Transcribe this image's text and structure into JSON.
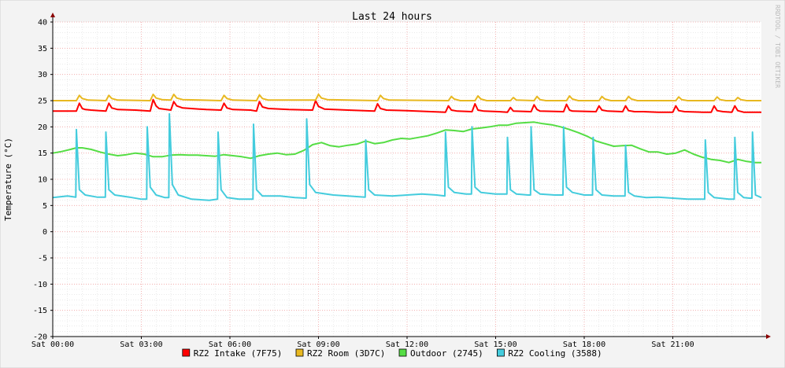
{
  "chart_data": {
    "type": "line",
    "title": "Last 24 hours",
    "ylabel": "Temperature (°C)",
    "xlabel": "",
    "watermark": "RRDTOOL / TOBI OETIKER",
    "ylim": [
      -20,
      40
    ],
    "yticks": [
      "40",
      "35",
      "30",
      "25",
      "20",
      "15",
      "10",
      "5",
      "0",
      "-5",
      "-10",
      "-15",
      "-20"
    ],
    "xlim": [
      0,
      24
    ],
    "xticks": [
      {
        "h": 0,
        "label": "Sat 00:00"
      },
      {
        "h": 3,
        "label": "Sat 03:00"
      },
      {
        "h": 6,
        "label": "Sat 06:00"
      },
      {
        "h": 9,
        "label": "Sat 09:00"
      },
      {
        "h": 12,
        "label": "Sat 12:00"
      },
      {
        "h": 15,
        "label": "Sat 15:00"
      },
      {
        "h": 18,
        "label": "Sat 18:00"
      },
      {
        "h": 21,
        "label": "Sat 21:00"
      }
    ],
    "grid": true,
    "legend_position": "bottom",
    "colors": {
      "background": "#f3f3f3",
      "canvas": "#ffffff",
      "major_grid": "#f0a0a0",
      "minor_grid": "#dddddd",
      "axis": "#000000",
      "arrow": "#8b0000"
    },
    "series": [
      {
        "name": "RZ2 Intake (7F75)",
        "color": "#ff0000",
        "x": [
          0,
          0.8,
          0.9,
          1.0,
          1.1,
          1.3,
          1.8,
          1.9,
          2.0,
          2.2,
          2.8,
          3.3,
          3.4,
          3.5,
          3.6,
          4.0,
          4.1,
          4.2,
          4.4,
          5.2,
          5.7,
          5.8,
          5.9,
          6.1,
          6.7,
          6.9,
          7.0,
          7.1,
          7.3,
          8.0,
          8.8,
          8.9,
          9.0,
          9.2,
          10.0,
          10.9,
          11.0,
          11.1,
          11.3,
          12.0,
          13.3,
          13.4,
          13.5,
          13.7,
          14.2,
          14.3,
          14.4,
          14.6,
          15.1,
          15.4,
          15.5,
          15.6,
          16.2,
          16.3,
          16.4,
          16.5,
          17.3,
          17.4,
          17.5,
          17.6,
          18.4,
          18.5,
          18.6,
          18.8,
          19.3,
          19.4,
          19.5,
          19.7,
          20.0,
          20.5,
          21.0,
          21.1,
          21.2,
          21.4,
          22.0,
          22.3,
          22.4,
          22.5,
          22.7,
          23.0,
          23.1,
          23.2,
          23.4,
          23.8,
          24.0
        ],
        "y": [
          23.0,
          23.0,
          24.5,
          23.5,
          23.3,
          23.2,
          23.0,
          24.5,
          23.6,
          23.3,
          23.2,
          23.0,
          25.2,
          24.0,
          23.5,
          23.2,
          24.8,
          24.0,
          23.6,
          23.3,
          23.2,
          24.5,
          23.6,
          23.3,
          23.2,
          23.0,
          24.8,
          23.8,
          23.5,
          23.3,
          23.2,
          25.0,
          23.9,
          23.4,
          23.2,
          23.0,
          24.4,
          23.5,
          23.2,
          23.1,
          22.8,
          24.0,
          23.2,
          23.0,
          22.9,
          24.4,
          23.2,
          23.0,
          22.9,
          22.8,
          23.7,
          23.0,
          22.9,
          24.2,
          23.3,
          23.0,
          22.9,
          24.3,
          23.2,
          23.0,
          22.9,
          24.0,
          23.2,
          23.0,
          22.9,
          24.0,
          23.1,
          22.9,
          22.9,
          22.8,
          22.8,
          24.0,
          23.1,
          22.9,
          22.8,
          22.8,
          24.0,
          23.1,
          22.9,
          22.8,
          24.0,
          23.1,
          22.8,
          22.8,
          22.8
        ]
      },
      {
        "name": "RZ2 Room (3D7C)",
        "color": "#e8b820",
        "x": [
          0,
          0.8,
          0.9,
          1.0,
          1.2,
          1.8,
          1.9,
          2.0,
          2.2,
          3.3,
          3.4,
          3.5,
          3.7,
          4.0,
          4.1,
          4.2,
          4.4,
          5.7,
          5.8,
          5.9,
          6.1,
          6.9,
          7.0,
          7.1,
          7.3,
          8.9,
          9.0,
          9.1,
          9.3,
          11.0,
          11.1,
          11.2,
          11.4,
          13.4,
          13.5,
          13.6,
          13.8,
          14.3,
          14.4,
          14.5,
          14.7,
          15.5,
          15.6,
          15.7,
          16.3,
          16.4,
          16.5,
          16.7,
          17.4,
          17.5,
          17.6,
          17.8,
          18.5,
          18.6,
          18.7,
          18.9,
          19.4,
          19.5,
          19.6,
          19.8,
          21.1,
          21.2,
          21.3,
          21.5,
          22.4,
          22.5,
          22.6,
          22.8,
          23.1,
          23.2,
          23.3,
          23.5,
          24.0
        ],
        "y": [
          25.0,
          25.0,
          26.0,
          25.4,
          25.1,
          25.0,
          26.0,
          25.4,
          25.1,
          25.0,
          26.2,
          25.5,
          25.2,
          25.1,
          26.2,
          25.5,
          25.2,
          25.0,
          26.0,
          25.4,
          25.1,
          25.0,
          26.1,
          25.4,
          25.1,
          25.1,
          26.2,
          25.5,
          25.2,
          25.0,
          26.0,
          25.4,
          25.1,
          25.0,
          25.8,
          25.3,
          25.0,
          25.0,
          25.9,
          25.3,
          25.0,
          25.0,
          25.6,
          25.1,
          25.0,
          25.8,
          25.2,
          25.0,
          25.0,
          25.9,
          25.3,
          25.0,
          25.0,
          25.8,
          25.3,
          25.0,
          25.0,
          25.8,
          25.3,
          25.0,
          25.0,
          25.7,
          25.2,
          25.0,
          25.0,
          25.7,
          25.2,
          25.0,
          25.0,
          25.6,
          25.2,
          25.0,
          25.0
        ]
      },
      {
        "name": "Outdoor (2745)",
        "color": "#55dd44",
        "x": [
          0,
          0.3,
          0.6,
          0.8,
          1.0,
          1.3,
          1.6,
          1.9,
          2.2,
          2.5,
          2.8,
          3.1,
          3.4,
          3.7,
          4.0,
          4.3,
          4.6,
          4.9,
          5.2,
          5.5,
          5.8,
          6.1,
          6.4,
          6.7,
          7.0,
          7.3,
          7.6,
          7.9,
          8.2,
          8.5,
          8.8,
          9.1,
          9.4,
          9.7,
          10.0,
          10.3,
          10.6,
          10.9,
          11.2,
          11.5,
          11.8,
          12.1,
          12.4,
          12.7,
          13.0,
          13.3,
          13.6,
          13.9,
          14.2,
          14.5,
          14.8,
          15.1,
          15.4,
          15.7,
          16.0,
          16.3,
          16.6,
          16.9,
          17.2,
          17.5,
          17.8,
          18.1,
          18.4,
          18.7,
          19.0,
          19.3,
          19.6,
          19.9,
          20.2,
          20.5,
          20.8,
          21.1,
          21.4,
          21.7,
          22.0,
          22.3,
          22.6,
          22.9,
          23.2,
          23.5,
          23.8,
          24.0
        ],
        "y": [
          15.0,
          15.3,
          15.7,
          16.0,
          16.0,
          15.7,
          15.2,
          14.8,
          14.5,
          14.7,
          15.0,
          14.8,
          14.3,
          14.3,
          14.6,
          14.7,
          14.6,
          14.6,
          14.5,
          14.4,
          14.7,
          14.5,
          14.3,
          14.0,
          14.5,
          14.8,
          15.0,
          14.7,
          14.8,
          15.5,
          16.6,
          17.0,
          16.4,
          16.2,
          16.5,
          16.7,
          17.3,
          16.8,
          17.0,
          17.5,
          17.8,
          17.7,
          18.0,
          18.3,
          18.8,
          19.4,
          19.3,
          19.1,
          19.6,
          19.8,
          20.0,
          20.3,
          20.3,
          20.7,
          20.8,
          20.9,
          20.6,
          20.4,
          20.0,
          19.5,
          18.9,
          18.2,
          17.3,
          16.8,
          16.3,
          16.4,
          16.5,
          15.8,
          15.2,
          15.2,
          14.8,
          15.0,
          15.6,
          14.8,
          14.2,
          13.8,
          13.6,
          13.2,
          13.8,
          13.4,
          13.2,
          13.2
        ]
      },
      {
        "name": "RZ2 Cooling (3588)",
        "color": "#44ccdd",
        "x": [
          0,
          0.5,
          0.78,
          0.8,
          0.9,
          1.1,
          1.5,
          1.78,
          1.8,
          1.9,
          2.1,
          2.6,
          3.0,
          3.18,
          3.2,
          3.3,
          3.5,
          3.8,
          3.93,
          3.95,
          4.05,
          4.25,
          4.7,
          5.3,
          5.58,
          5.6,
          5.7,
          5.9,
          6.3,
          6.7,
          6.78,
          6.8,
          6.9,
          7.1,
          7.7,
          8.2,
          8.58,
          8.6,
          8.7,
          8.9,
          9.5,
          10.0,
          10.58,
          10.6,
          10.7,
          10.9,
          11.5,
          12.0,
          12.5,
          13.0,
          13.28,
          13.3,
          13.4,
          13.6,
          14.0,
          14.18,
          14.2,
          14.3,
          14.5,
          15.0,
          15.38,
          15.4,
          15.5,
          15.7,
          16.1,
          16.18,
          16.2,
          16.3,
          16.5,
          17.0,
          17.28,
          17.3,
          17.4,
          17.6,
          18.0,
          18.28,
          18.3,
          18.4,
          18.6,
          19.0,
          19.38,
          19.4,
          19.5,
          19.7,
          20.1,
          20.5,
          21.0,
          21.5,
          22.08,
          22.1,
          22.2,
          22.4,
          22.9,
          23.08,
          23.1,
          23.2,
          23.4,
          23.6,
          23.68,
          23.7,
          23.8,
          24.0
        ],
        "y": [
          6.5,
          6.8,
          6.6,
          19.5,
          8.0,
          7.0,
          6.6,
          6.6,
          19.0,
          8.0,
          7.0,
          6.6,
          6.2,
          6.2,
          20.0,
          8.5,
          7.0,
          6.5,
          6.5,
          22.5,
          9.0,
          7.0,
          6.2,
          6.0,
          6.2,
          19.0,
          8.0,
          6.5,
          6.2,
          6.2,
          6.2,
          20.5,
          8.0,
          6.8,
          6.8,
          6.5,
          6.4,
          21.5,
          9.0,
          7.5,
          7.0,
          6.8,
          6.6,
          17.5,
          8.0,
          7.0,
          6.8,
          7.0,
          7.2,
          7.0,
          6.8,
          19.0,
          8.5,
          7.5,
          7.2,
          7.2,
          20.0,
          8.5,
          7.5,
          7.2,
          7.2,
          18.0,
          8.0,
          7.2,
          7.0,
          7.0,
          20.0,
          8.0,
          7.2,
          7.0,
          7.0,
          20.0,
          8.5,
          7.5,
          7.0,
          7.0,
          18.0,
          8.0,
          7.0,
          6.8,
          6.8,
          16.5,
          7.5,
          6.8,
          6.5,
          6.6,
          6.4,
          6.2,
          6.2,
          17.5,
          7.5,
          6.5,
          6.2,
          6.2,
          18.0,
          7.5,
          6.5,
          6.4,
          6.4,
          19.0,
          7.0,
          6.5
        ]
      }
    ]
  }
}
